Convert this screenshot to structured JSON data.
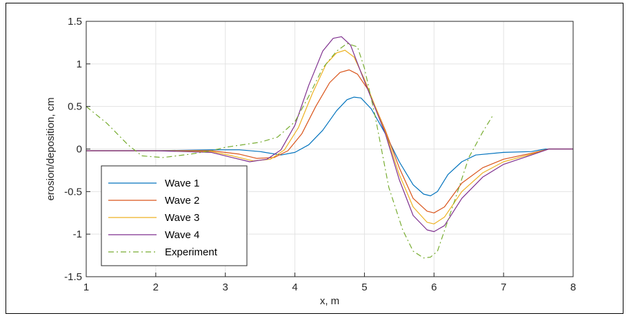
{
  "chart_data": {
    "type": "line",
    "xlabel": "x, m",
    "ylabel": "erosion/deposition, cm",
    "xlim": [
      1,
      8
    ],
    "ylim": [
      -1.5,
      1.5
    ],
    "xticks": [
      "1",
      "2",
      "3",
      "4",
      "5",
      "6",
      "7",
      "8"
    ],
    "yticks": [
      "1.5",
      "1",
      "0.5",
      "0",
      "-0.5",
      "-1",
      "-1.5"
    ],
    "grid": true,
    "legend_position": "bottom-left",
    "series": [
      {
        "name": "Wave 1",
        "color": "#0072BD",
        "style": "solid",
        "x": [
          1.0,
          2.0,
          2.8,
          3.2,
          3.5,
          3.8,
          4.0,
          4.2,
          4.4,
          4.6,
          4.75,
          4.85,
          4.95,
          5.1,
          5.3,
          5.5,
          5.7,
          5.85,
          5.95,
          6.05,
          6.2,
          6.4,
          6.6,
          7.0,
          7.4,
          7.6,
          8.0
        ],
        "y": [
          -0.02,
          -0.02,
          -0.01,
          -0.01,
          -0.03,
          -0.07,
          -0.04,
          0.05,
          0.22,
          0.45,
          0.58,
          0.61,
          0.6,
          0.47,
          0.18,
          -0.15,
          -0.42,
          -0.53,
          -0.55,
          -0.5,
          -0.3,
          -0.15,
          -0.07,
          -0.04,
          -0.03,
          0.0,
          0.0
        ]
      },
      {
        "name": "Wave 2",
        "color": "#D95319",
        "style": "solid",
        "x": [
          1.0,
          2.0,
          2.8,
          3.2,
          3.45,
          3.7,
          3.9,
          4.1,
          4.3,
          4.5,
          4.65,
          4.78,
          4.9,
          5.05,
          5.3,
          5.5,
          5.7,
          5.9,
          6.0,
          6.15,
          6.4,
          6.7,
          7.0,
          7.4,
          7.65,
          8.0
        ],
        "y": [
          -0.02,
          -0.02,
          -0.02,
          -0.06,
          -0.11,
          -0.1,
          -0.02,
          0.18,
          0.5,
          0.78,
          0.9,
          0.93,
          0.88,
          0.7,
          0.22,
          -0.22,
          -0.58,
          -0.73,
          -0.75,
          -0.68,
          -0.4,
          -0.22,
          -0.12,
          -0.05,
          0.0,
          0.0
        ]
      },
      {
        "name": "Wave 3",
        "color": "#EDB120",
        "style": "solid",
        "x": [
          1.0,
          2.0,
          2.8,
          3.1,
          3.4,
          3.65,
          3.85,
          4.05,
          4.25,
          4.45,
          4.6,
          4.72,
          4.85,
          5.0,
          5.3,
          5.5,
          5.7,
          5.9,
          6.0,
          6.15,
          6.4,
          6.7,
          7.0,
          7.4,
          7.65,
          8.0
        ],
        "y": [
          -0.02,
          -0.02,
          -0.03,
          -0.08,
          -0.14,
          -0.12,
          -0.01,
          0.25,
          0.65,
          1.0,
          1.13,
          1.16,
          1.08,
          0.82,
          0.2,
          -0.3,
          -0.68,
          -0.86,
          -0.88,
          -0.8,
          -0.5,
          -0.28,
          -0.15,
          -0.06,
          0.0,
          0.0
        ]
      },
      {
        "name": "Wave 4",
        "color": "#7E2F8E",
        "style": "solid",
        "x": [
          1.0,
          2.0,
          2.8,
          3.1,
          3.35,
          3.6,
          3.8,
          4.0,
          4.2,
          4.4,
          4.55,
          4.67,
          4.8,
          4.95,
          5.3,
          5.5,
          5.7,
          5.9,
          6.0,
          6.15,
          6.4,
          6.7,
          7.0,
          7.4,
          7.65,
          8.0
        ],
        "y": [
          -0.02,
          -0.02,
          -0.04,
          -0.1,
          -0.15,
          -0.12,
          -0.01,
          0.28,
          0.75,
          1.15,
          1.3,
          1.32,
          1.22,
          0.9,
          0.18,
          -0.36,
          -0.78,
          -0.95,
          -0.97,
          -0.9,
          -0.58,
          -0.33,
          -0.18,
          -0.07,
          0.0,
          0.0
        ]
      },
      {
        "name": "Experiment",
        "color": "#77AC30",
        "style": "dashdot",
        "x": [
          1.0,
          1.3,
          1.6,
          1.8,
          2.1,
          2.5,
          2.8,
          3.0,
          3.5,
          3.75,
          4.0,
          4.2,
          4.4,
          4.6,
          4.75,
          4.9,
          5.0,
          5.15,
          5.35,
          5.55,
          5.7,
          5.85,
          5.95,
          6.05,
          6.3,
          6.5,
          6.7,
          6.85
        ],
        "y": [
          0.5,
          0.3,
          0.05,
          -0.08,
          -0.1,
          -0.06,
          -0.02,
          0.02,
          0.08,
          0.14,
          0.32,
          0.62,
          0.95,
          1.15,
          1.24,
          1.2,
          0.95,
          0.4,
          -0.45,
          -0.95,
          -1.2,
          -1.28,
          -1.27,
          -1.2,
          -0.6,
          -0.1,
          0.2,
          0.4
        ]
      }
    ]
  }
}
